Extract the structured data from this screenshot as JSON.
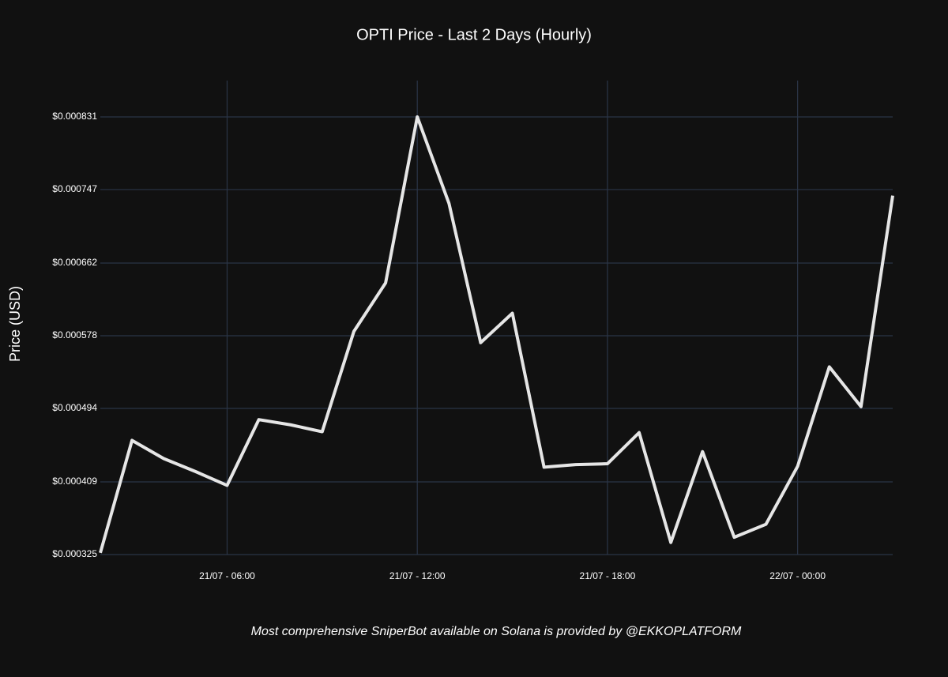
{
  "chart_data": {
    "type": "line",
    "title": "OPTI Price - Last 2 Days (Hourly)",
    "y_axis_label": "Price (USD)",
    "footer": "Most comprehensive SniperBot available on Solana is provided by @EKKOPLATFORM",
    "x": [
      "21/07 - 02:00",
      "21/07 - 03:00",
      "21/07 - 04:00",
      "21/07 - 05:00",
      "21/07 - 06:00",
      "21/07 - 07:00",
      "21/07 - 08:00",
      "21/07 - 09:00",
      "21/07 - 10:00",
      "21/07 - 11:00",
      "21/07 - 12:00",
      "21/07 - 13:00",
      "21/07 - 14:00",
      "21/07 - 15:00",
      "21/07 - 16:00",
      "21/07 - 17:00",
      "21/07 - 18:00",
      "21/07 - 19:00",
      "21/07 - 20:00",
      "21/07 - 21:00",
      "21/07 - 22:00",
      "21/07 - 23:00",
      "22/07 - 00:00",
      "22/07 - 01:00",
      "22/07 - 02:00",
      "22/07 - 03:00"
    ],
    "series": [
      {
        "name": "OPTI",
        "color": "#e6e6e6",
        "values": [
          0.000327,
          0.000457,
          0.000436,
          0.000421,
          0.000405,
          0.000481,
          0.000475,
          0.000467,
          0.000583,
          0.000639,
          0.000831,
          0.000731,
          0.00057,
          0.000604,
          0.000426,
          0.000429,
          0.00043,
          0.000466,
          0.000339,
          0.000444,
          0.000345,
          0.00036,
          0.000427,
          0.000542,
          0.000496,
          0.00074
        ]
      }
    ],
    "xlim": [
      "21/07 - 02:00",
      "22/07 - 03:00"
    ],
    "xticks": [
      "21/07 - 06:00",
      "21/07 - 12:00",
      "21/07 - 18:00",
      "22/07 - 00:00"
    ],
    "ylim": [
      0.000325,
      0.000873
    ],
    "yticks": [
      {
        "value": 0.000325,
        "label": "$0.000325"
      },
      {
        "value": 0.000409,
        "label": "$0.000409"
      },
      {
        "value": 0.000494,
        "label": "$0.000494"
      },
      {
        "value": 0.000578,
        "label": "$0.000578"
      },
      {
        "value": 0.000662,
        "label": "$0.000662"
      },
      {
        "value": 0.000747,
        "label": "$0.000747"
      },
      {
        "value": 0.000831,
        "label": "$0.000831"
      }
    ],
    "grid": true
  }
}
